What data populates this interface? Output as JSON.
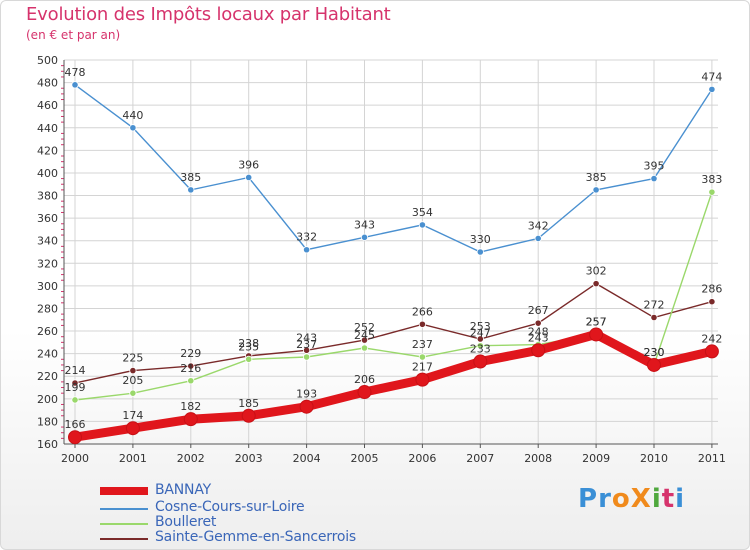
{
  "header": {
    "title": "Evolution des Impôts locaux par Habitant",
    "subtitle": "(en € et par an)"
  },
  "logo": {
    "text": "ProXiti",
    "letters": [
      "P",
      "r",
      "o",
      "X",
      "i",
      "t",
      "i"
    ],
    "colors": [
      "#3a8fd6",
      "#3a8fd6",
      "#f08a1c",
      "#f08a1c",
      "#4fa83d",
      "#d6336c",
      "#3a8fd6"
    ]
  },
  "chart_data": {
    "type": "line",
    "title": "Evolution des Impôts locaux par Habitant",
    "subtitle": "(en € et par an)",
    "xlabel": "",
    "ylabel": "",
    "categories": [
      "2000",
      "2001",
      "2002",
      "2003",
      "2004",
      "2005",
      "2006",
      "2007",
      "2008",
      "2009",
      "2010",
      "2011"
    ],
    "ylim": [
      160,
      500
    ],
    "yticks": [
      160,
      180,
      200,
      220,
      240,
      260,
      280,
      300,
      320,
      340,
      360,
      380,
      400,
      420,
      440,
      460,
      480,
      500
    ],
    "grid": true,
    "legend_position": "bottom",
    "series": [
      {
        "name": "Cosne-Cours-sur-Loire",
        "color": "#4a90d0",
        "values": [
          478,
          440,
          385,
          396,
          332,
          343,
          354,
          330,
          342,
          385,
          395,
          474
        ],
        "labels": [
          "478",
          "440",
          "385",
          "396",
          "332",
          "343",
          "354",
          "330",
          "342",
          "385",
          "395",
          "474"
        ]
      },
      {
        "name": "Sainte-Gemme-en-Sancerrois",
        "color": "#7a2a2a",
        "values": [
          214,
          225,
          229,
          238,
          243,
          252,
          266,
          253,
          267,
          302,
          272,
          286
        ],
        "labels": [
          "214",
          "225",
          "229",
          "238",
          "243",
          "252",
          "266",
          "253",
          "267",
          "302",
          "272",
          "286"
        ]
      },
      {
        "name": "Boulleret",
        "color": "#9ad86b",
        "values": [
          199,
          205,
          216,
          235,
          237,
          245,
          237,
          247,
          248,
          257,
          230,
          383
        ],
        "labels": [
          "199",
          "205",
          "216",
          "235",
          "237",
          "245",
          "237",
          "247",
          "248",
          "257",
          "230",
          "383"
        ]
      },
      {
        "name": "BANNAY",
        "color": "#e0161c",
        "values": [
          166,
          174,
          182,
          185,
          193,
          206,
          217,
          233,
          243,
          257,
          230,
          242
        ],
        "labels": [
          "166",
          "174",
          "182",
          "185",
          "193",
          "206",
          "217",
          "233",
          "243",
          "257",
          "230",
          "242"
        ]
      }
    ]
  },
  "legend": {
    "items": [
      {
        "name": "BANNAY",
        "color": "#e0161c"
      },
      {
        "name": "Cosne-Cours-sur-Loire",
        "color": "#4a90d0"
      },
      {
        "name": "Boulleret",
        "color": "#9ad86b"
      },
      {
        "name": "Sainte-Gemme-en-Sancerrois",
        "color": "#7a2a2a"
      }
    ]
  }
}
